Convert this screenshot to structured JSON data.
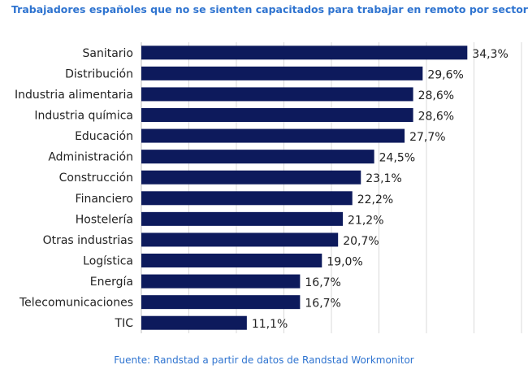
{
  "title": "Trabajadores españoles que no se sienten capacitados para trabajar en remoto por sector",
  "source": "Fuente: Randstad a partir de datos de Randstad Workmonitor",
  "colors": {
    "bar": "#0d1a5c",
    "title": "#2f74d0",
    "grid": "#d9d9d9"
  },
  "chart_data": {
    "type": "bar",
    "orientation": "horizontal",
    "categories": [
      "Sanitario",
      "Distribución",
      "Industria alimentaria",
      "Industria química",
      "Educación",
      "Administración",
      "Construcción",
      "Financiero",
      "Hostelería",
      "Otras industrias",
      "Logística",
      "Energía",
      "Telecomunicaciones",
      "TIC"
    ],
    "values": [
      34.3,
      29.6,
      28.6,
      28.6,
      27.7,
      24.5,
      23.1,
      22.2,
      21.2,
      20.7,
      19.0,
      16.7,
      16.7,
      11.1
    ],
    "labels": [
      "34,3%",
      "29,6%",
      "28,6%",
      "28,6%",
      "27,7%",
      "24,5%",
      "23,1%",
      "22,2%",
      "21,2%",
      "20,7%",
      "19,0%",
      "16,7%",
      "16,7%",
      "11,1%"
    ],
    "xlim": [
      0,
      40
    ],
    "grid": true,
    "legend": false
  }
}
